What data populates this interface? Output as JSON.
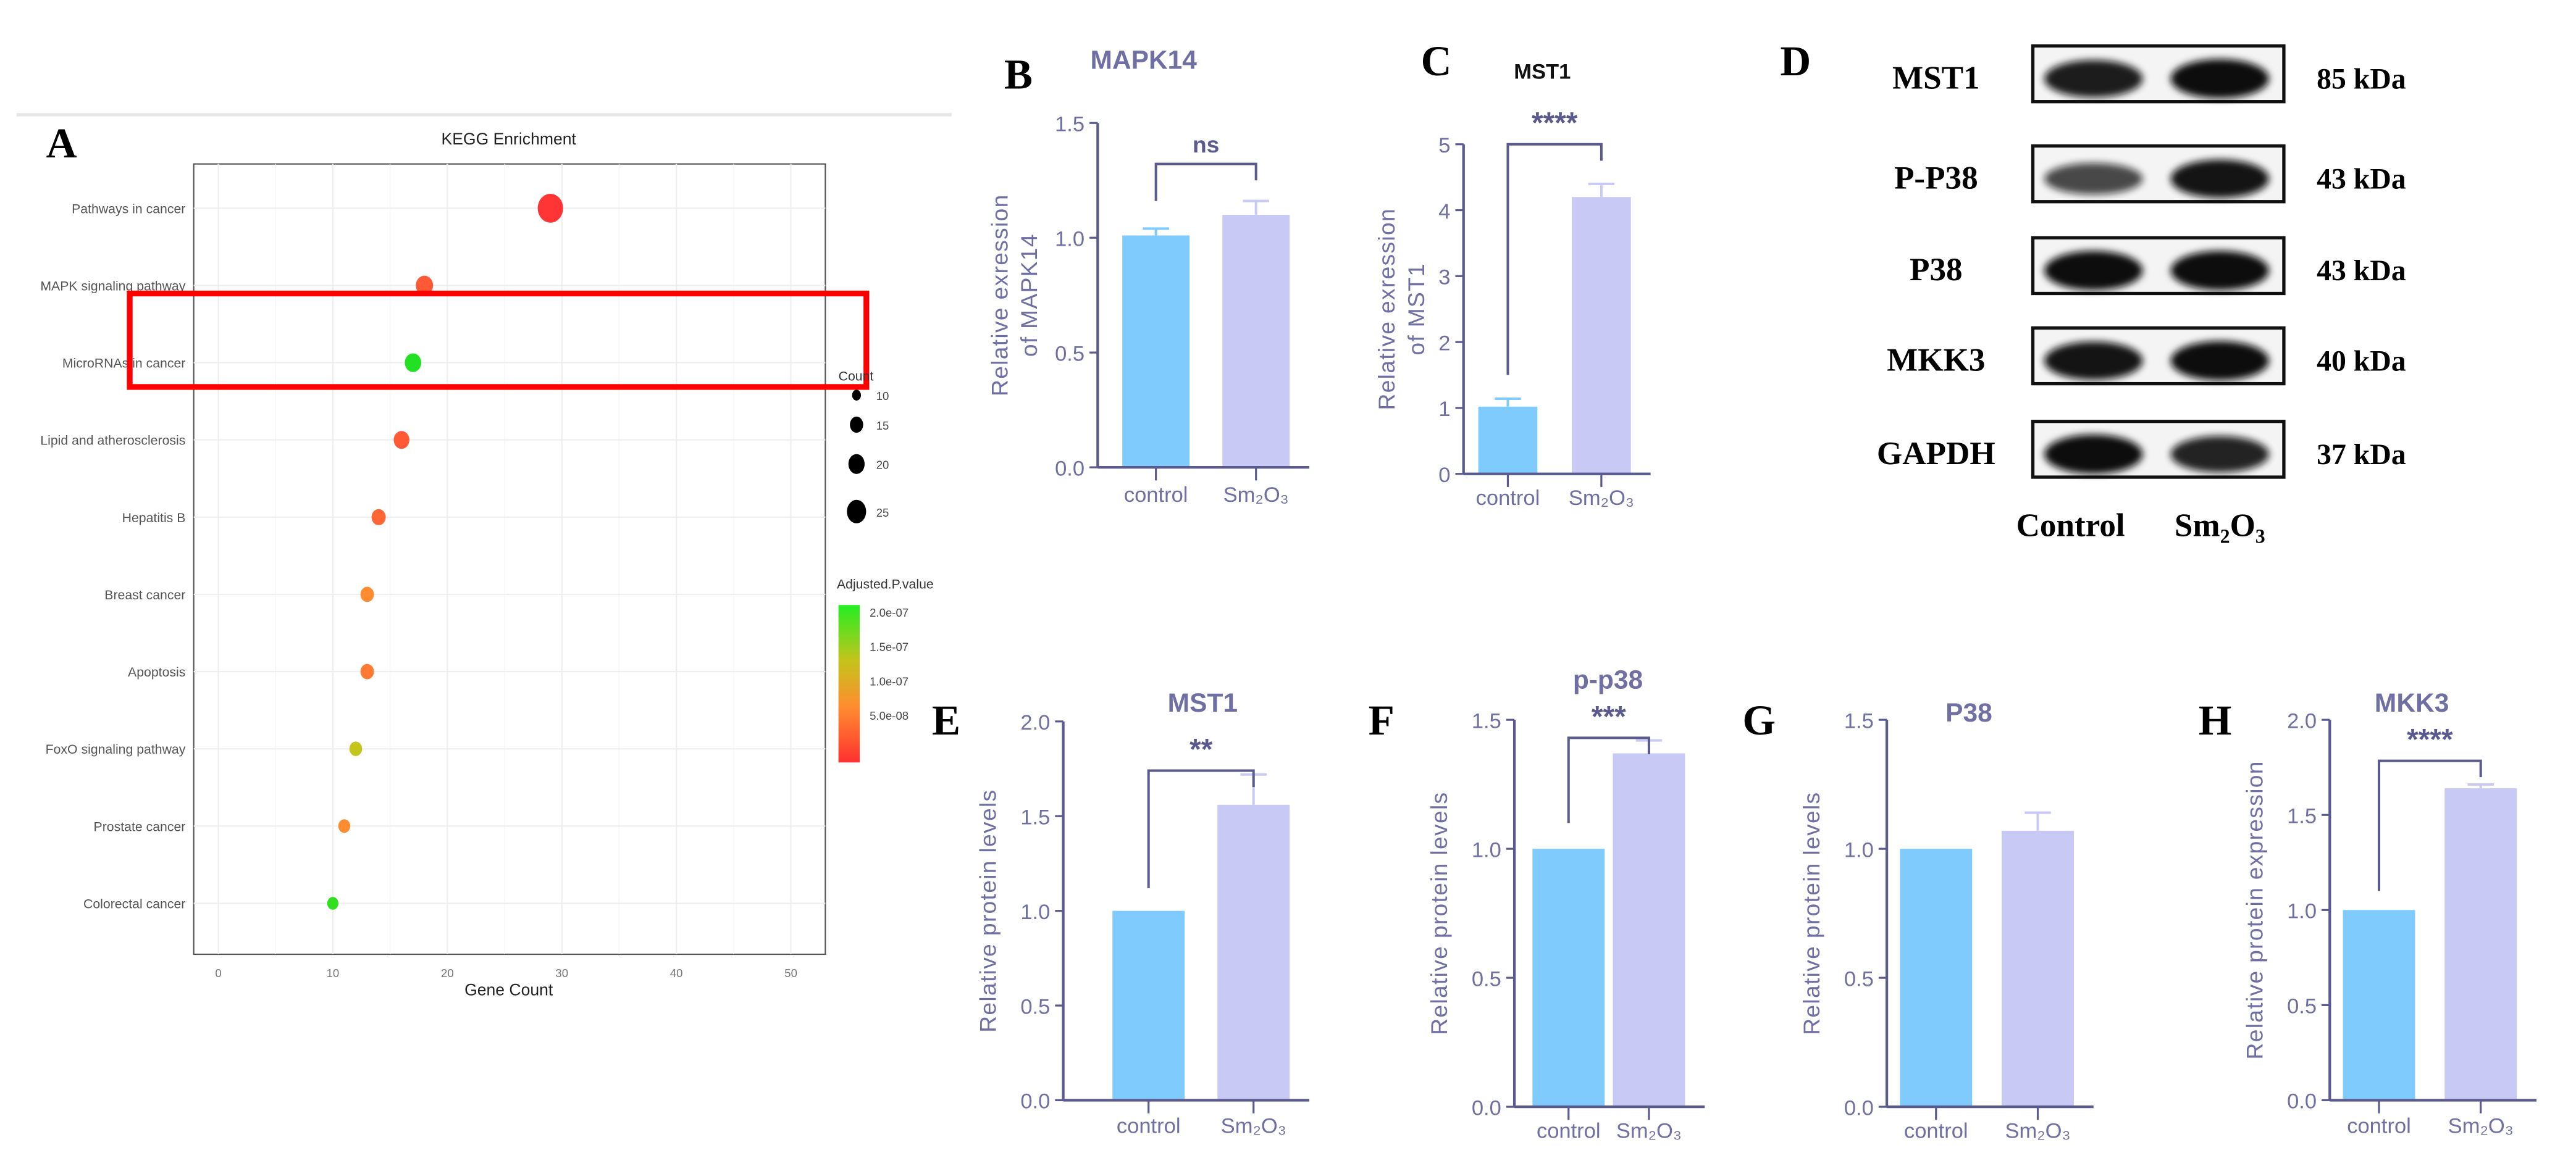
{
  "colors": {
    "control": "#7fcbfd",
    "treated": "#c9c9f5",
    "axis": "#5a5a8e",
    "text": "#6f6fa3",
    "highlight": "#ff0000"
  },
  "chart_data": [
    {
      "id": "A",
      "letter": "A",
      "type": "scatter",
      "title": "KEGG Enrichment",
      "xlabel": "Gene Count",
      "xlim": [
        -1,
        52
      ],
      "xticks": [
        "0",
        "10",
        "20",
        "30",
        "40",
        "50"
      ],
      "xtick_values": [
        0,
        10,
        20,
        30,
        40,
        50
      ],
      "categories": [
        "Pathways in cancer",
        "MAPK signaling pathway",
        "MicroRNAs in cancer",
        "Lipid and atherosclerosis",
        "Hepatitis B",
        "Breast cancer",
        "Apoptosis",
        "FoxO signaling pathway",
        "Prostate cancer",
        "Colorectal cancer"
      ],
      "x": [
        29,
        18,
        17,
        16,
        14,
        13,
        13,
        12,
        11,
        10
      ],
      "colors": [
        "#ff3535",
        "#ff5a35",
        "#22e022",
        "#ff5a35",
        "#ff6635",
        "#ff8c30",
        "#ff7a32",
        "#c4c41c",
        "#ff8c30",
        "#30e020"
      ],
      "highlight": "MicroRNAs in cancer",
      "legend_size": {
        "title": "Count",
        "labels": [
          "10",
          "15",
          "20",
          "25"
        ],
        "values": [
          10,
          15,
          20,
          25
        ]
      },
      "legend_color": {
        "title": "Adjusted.P.value",
        "labels": [
          "2.0e-07",
          "1.5e-07",
          "1.0e-07",
          "5.0e-08"
        ]
      }
    },
    {
      "id": "B",
      "letter": "B",
      "type": "bar",
      "title": "MAPK14",
      "ylabel": [
        "Relative exression",
        "of MAPK14"
      ],
      "ylim": [
        0,
        1.5
      ],
      "yticks": [
        "0.0",
        "0.5",
        "1.0",
        "1.5"
      ],
      "ytick_values": [
        0,
        0.5,
        1,
        1.5
      ],
      "categories": [
        "control",
        "Sm₂O₃"
      ],
      "values": [
        1.01,
        1.1
      ],
      "errors": [
        0.03,
        0.06
      ],
      "significance": "ns"
    },
    {
      "id": "C",
      "letter": "C",
      "type": "bar",
      "title": "MST1",
      "ylabel": [
        "Relative exression",
        "of MST1"
      ],
      "ylim": [
        0,
        5
      ],
      "yticks": [
        "0",
        "1",
        "2",
        "3",
        "4",
        "5"
      ],
      "ytick_values": [
        0,
        1,
        2,
        3,
        4,
        5
      ],
      "categories": [
        "control",
        "Sm₂O₃"
      ],
      "values": [
        1.02,
        4.2
      ],
      "errors": [
        0.12,
        0.2
      ],
      "significance": "****"
    },
    {
      "id": "E",
      "letter": "E",
      "type": "bar",
      "title": "MST1",
      "ylabel": [
        "Relative  protein levels"
      ],
      "ylim": [
        0,
        2.0
      ],
      "yticks": [
        "0.0",
        "0.5",
        "1.0",
        "1.5",
        "2.0"
      ],
      "ytick_values": [
        0,
        0.5,
        1,
        1.5,
        2
      ],
      "categories": [
        "control",
        "Sm₂O₃"
      ],
      "values": [
        1.0,
        1.56
      ],
      "errors": [
        0,
        0.16
      ],
      "significance": "**"
    },
    {
      "id": "F",
      "letter": "F",
      "type": "bar",
      "title": "p-p38",
      "ylabel": [
        "Relative  protein levels"
      ],
      "ylim": [
        0,
        1.5
      ],
      "yticks": [
        "0.0",
        "0.5",
        "1.0",
        "1.5"
      ],
      "ytick_values": [
        0,
        0.5,
        1,
        1.5
      ],
      "categories": [
        "control",
        "Sm₂O₃"
      ],
      "values": [
        1.0,
        1.37
      ],
      "errors": [
        0,
        0.05
      ],
      "significance": "***"
    },
    {
      "id": "G",
      "letter": "G",
      "type": "bar",
      "title": "P38",
      "ylabel": [
        "Relative  protein levels"
      ],
      "ylim": [
        0,
        1.5
      ],
      "yticks": [
        "0.0",
        "0.5",
        "1.0",
        "1.5"
      ],
      "ytick_values": [
        0,
        0.5,
        1,
        1.5
      ],
      "categories": [
        "control",
        "Sm₂O₃"
      ],
      "values": [
        1.0,
        1.07
      ],
      "errors": [
        0,
        0.07
      ],
      "significance": ""
    },
    {
      "id": "H",
      "letter": "H",
      "type": "bar",
      "title": "MKK3",
      "ylabel": [
        "Relative  protein expression"
      ],
      "ylim": [
        0,
        2.0
      ],
      "yticks": [
        "0.0",
        "0.5",
        "1.0",
        "1.5",
        "2.0"
      ],
      "ytick_values": [
        0,
        0.5,
        1,
        1.5,
        2
      ],
      "categories": [
        "control",
        "Sm₂O₃"
      ],
      "values": [
        1.0,
        1.64
      ],
      "errors": [
        0,
        0.02
      ],
      "significance": "****"
    }
  ],
  "western_blot": {
    "letter": "D",
    "lanes": [
      "Control",
      "Sm₂O₃"
    ],
    "rows": [
      {
        "protein": "MST1",
        "size": "85 kDa",
        "intensity": [
          0.9,
          1.0
        ]
      },
      {
        "protein": "P-P38",
        "size": "43 kDa",
        "intensity": [
          0.6,
          0.95
        ]
      },
      {
        "protein": "P38",
        "size": "43 kDa",
        "intensity": [
          1.0,
          1.0
        ]
      },
      {
        "protein": "MKK3",
        "size": "40 kDa",
        "intensity": [
          0.95,
          1.0
        ]
      },
      {
        "protein": "GAPDH",
        "size": "37 kDa",
        "intensity": [
          1.0,
          0.85
        ]
      }
    ]
  }
}
